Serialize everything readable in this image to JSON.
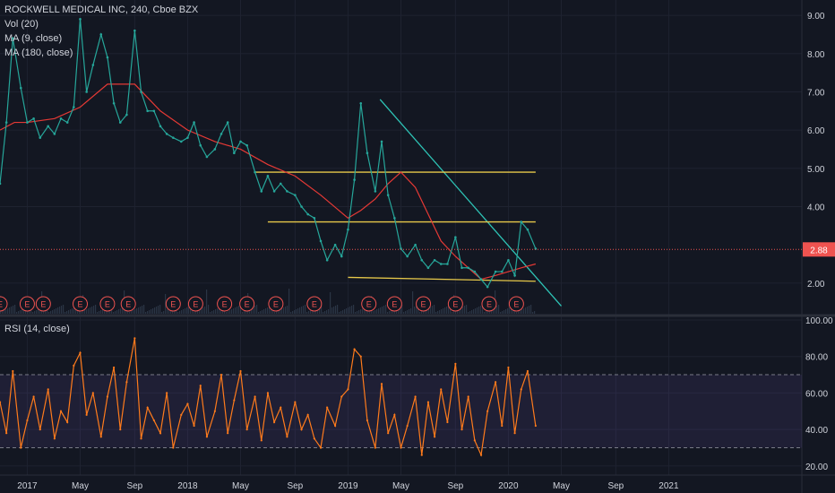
{
  "chart_data": [
    {
      "type": "line",
      "panel": "price",
      "title": "ROCKWELL MEDICAL INC, 240, Cboe BZX",
      "indicators": [
        "Vol (20)",
        "MA (9, close)",
        "MA (180, close)"
      ],
      "ylim": [
        1.2,
        9.4
      ],
      "y_ticks": [
        "9.00",
        "8.00",
        "7.00",
        "6.00",
        "5.00",
        "4.00",
        "2.00"
      ],
      "last_price_label": "2.88",
      "last_price": 2.88,
      "x_ticks": [
        "2017",
        "May",
        "Sep",
        "2018",
        "May",
        "Sep",
        "2019",
        "May",
        "Sep",
        "2020",
        "May",
        "Sep",
        "2021"
      ],
      "x_tick_times": [
        2017.0,
        2017.33,
        2017.67,
        2018.0,
        2018.33,
        2018.67,
        2019.0,
        2019.33,
        2019.67,
        2020.0,
        2020.33,
        2020.67,
        2021.0
      ],
      "xlim": [
        2016.83,
        2021.83
      ],
      "series": [
        {
          "kind": "price",
          "color": "#26a69a",
          "x": [
            2016.83,
            2016.87,
            2016.91,
            2016.96,
            2017.0,
            2017.04,
            2017.08,
            2017.13,
            2017.17,
            2017.21,
            2017.25,
            2017.29,
            2017.33,
            2017.37,
            2017.41,
            2017.46,
            2017.5,
            2017.54,
            2017.58,
            2017.62,
            2017.67,
            2017.71,
            2017.75,
            2017.79,
            2017.83,
            2017.87,
            2017.91,
            2017.96,
            2018.0,
            2018.04,
            2018.08,
            2018.12,
            2018.17,
            2018.21,
            2018.25,
            2018.29,
            2018.33,
            2018.37,
            2018.42,
            2018.46,
            2018.5,
            2018.54,
            2018.58,
            2018.62,
            2018.67,
            2018.71,
            2018.75,
            2018.79,
            2018.83,
            2018.87,
            2018.92,
            2018.96,
            2019.0,
            2019.04,
            2019.08,
            2019.12,
            2019.17,
            2019.21,
            2019.25,
            2019.29,
            2019.33,
            2019.37,
            2019.42,
            2019.46,
            2019.5,
            2019.54,
            2019.58,
            2019.62,
            2019.67,
            2019.71,
            2019.75,
            2019.79,
            2019.83,
            2019.87,
            2019.92,
            2019.96,
            2020.0,
            2020.04,
            2020.08,
            2020.12,
            2020.17
          ],
          "y": [
            4.6,
            6.2,
            8.4,
            7.1,
            6.2,
            6.3,
            5.8,
            6.1,
            5.9,
            6.3,
            6.2,
            6.6,
            8.9,
            7.0,
            7.7,
            8.5,
            7.9,
            6.7,
            6.2,
            6.4,
            8.6,
            7.0,
            6.5,
            6.5,
            6.1,
            5.9,
            5.8,
            5.7,
            5.8,
            6.2,
            5.6,
            5.3,
            5.5,
            5.9,
            6.2,
            5.4,
            5.7,
            5.6,
            4.9,
            4.4,
            4.8,
            4.4,
            4.6,
            4.4,
            4.3,
            4.0,
            3.8,
            3.7,
            3.1,
            2.6,
            3.0,
            2.7,
            3.4,
            4.7,
            6.7,
            5.4,
            4.4,
            5.7,
            4.3,
            3.7,
            2.9,
            2.7,
            3.0,
            2.6,
            2.4,
            2.6,
            2.5,
            2.5,
            3.2,
            2.4,
            2.4,
            2.3,
            2.1,
            1.9,
            2.3,
            2.3,
            2.6,
            2.2,
            3.6,
            3.4,
            2.9
          ]
        },
        {
          "kind": "ma180",
          "color": "#e53935",
          "x": [
            2016.83,
            2016.92,
            2017.0,
            2017.17,
            2017.33,
            2017.5,
            2017.67,
            2017.83,
            2018.0,
            2018.17,
            2018.33,
            2018.5,
            2018.67,
            2018.83,
            2019.0,
            2019.08,
            2019.17,
            2019.25,
            2019.33,
            2019.42,
            2019.5,
            2019.58,
            2019.67,
            2019.75,
            2019.83,
            2019.92,
            2020.0,
            2020.08,
            2020.17
          ],
          "y": [
            6.0,
            6.2,
            6.2,
            6.3,
            6.6,
            7.2,
            7.2,
            6.5,
            6.0,
            5.7,
            5.5,
            5.1,
            4.8,
            4.3,
            3.7,
            3.9,
            4.2,
            4.6,
            4.9,
            4.5,
            3.8,
            3.1,
            2.7,
            2.4,
            2.1,
            2.2,
            2.3,
            2.4,
            2.5
          ]
        }
      ],
      "annotations": [
        {
          "kind": "trendline",
          "color": "#2ec4b6",
          "x": [
            2019.2,
            2020.33
          ],
          "y": [
            6.8,
            1.4
          ]
        },
        {
          "kind": "hline",
          "color": "#e6c84a",
          "x": [
            2018.42,
            2020.17
          ],
          "y": [
            4.9,
            4.9
          ]
        },
        {
          "kind": "hline",
          "color": "#e6c84a",
          "x": [
            2018.5,
            2020.17
          ],
          "y": [
            3.6,
            3.6
          ]
        },
        {
          "kind": "hline",
          "color": "#e6c84a",
          "x": [
            2019.0,
            2020.17
          ],
          "y": [
            2.15,
            2.05
          ]
        }
      ],
      "earnings_markers": {
        "label": "E",
        "times": [
          2016.83,
          2017.0,
          2017.1,
          2017.33,
          2017.5,
          2017.63,
          2017.91,
          2018.05,
          2018.23,
          2018.37,
          2018.55,
          2018.79,
          2019.13,
          2019.29,
          2019.47,
          2019.67,
          2019.88,
          2020.05
        ]
      }
    },
    {
      "type": "line",
      "panel": "rsi",
      "title": "RSI (14, close)",
      "ylim": [
        15,
        100
      ],
      "y_ticks": [
        "100.00",
        "80.00",
        "60.00",
        "40.00",
        "20.00"
      ],
      "bands": [
        30,
        70
      ],
      "xlim": [
        2016.83,
        2021.83
      ],
      "series": [
        {
          "color": "#ff7b1c",
          "x": [
            2016.83,
            2016.87,
            2016.91,
            2016.96,
            2017.0,
            2017.04,
            2017.08,
            2017.13,
            2017.17,
            2017.21,
            2017.25,
            2017.29,
            2017.33,
            2017.37,
            2017.41,
            2017.46,
            2017.5,
            2017.54,
            2017.58,
            2017.62,
            2017.67,
            2017.71,
            2017.75,
            2017.79,
            2017.83,
            2017.87,
            2017.91,
            2017.96,
            2018.0,
            2018.04,
            2018.08,
            2018.12,
            2018.17,
            2018.21,
            2018.25,
            2018.29,
            2018.33,
            2018.37,
            2018.42,
            2018.46,
            2018.5,
            2018.54,
            2018.58,
            2018.62,
            2018.67,
            2018.71,
            2018.75,
            2018.79,
            2018.83,
            2018.87,
            2018.92,
            2018.96,
            2019.0,
            2019.04,
            2019.08,
            2019.12,
            2019.17,
            2019.21,
            2019.25,
            2019.29,
            2019.33,
            2019.37,
            2019.42,
            2019.46,
            2019.5,
            2019.54,
            2019.58,
            2019.62,
            2019.67,
            2019.71,
            2019.75,
            2019.79,
            2019.83,
            2019.87,
            2019.92,
            2019.96,
            2020.0,
            2020.04,
            2020.08,
            2020.12,
            2020.17
          ],
          "y": [
            55,
            38,
            72,
            30,
            45,
            58,
            40,
            62,
            35,
            50,
            44,
            75,
            82,
            48,
            60,
            36,
            58,
            74,
            40,
            66,
            90,
            35,
            52,
            45,
            38,
            60,
            30,
            48,
            54,
            42,
            64,
            36,
            50,
            70,
            38,
            56,
            72,
            40,
            58,
            34,
            60,
            44,
            52,
            36,
            55,
            40,
            48,
            35,
            30,
            52,
            42,
            58,
            62,
            84,
            80,
            45,
            30,
            65,
            38,
            48,
            30,
            42,
            58,
            26,
            55,
            36,
            62,
            44,
            76,
            40,
            58,
            34,
            26,
            50,
            66,
            42,
            74,
            38,
            62,
            72,
            42
          ]
        }
      ]
    }
  ]
}
